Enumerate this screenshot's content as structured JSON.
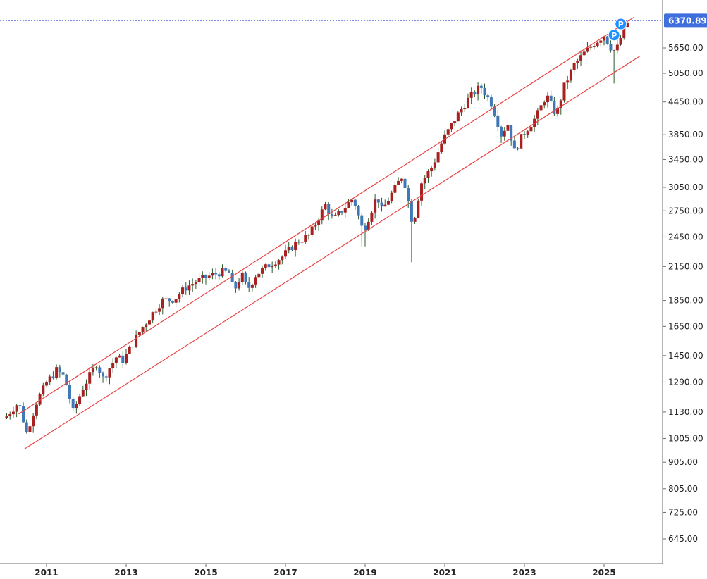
{
  "chart_data": {
    "type": "candlestick",
    "timeframe": "monthly",
    "scale": "log",
    "grid": false,
    "colors": {
      "up": "#a82020",
      "down": "#3f78b6",
      "wick": "#2a5a2a",
      "channel": "#e84545",
      "axis": "#6b6b6b",
      "price_tag": "#3f6fdc",
      "marker": "#1e90ff"
    },
    "y_ticks": [
      645,
      725,
      805,
      905,
      1005,
      1130,
      1290,
      1450,
      1650,
      1850,
      2150,
      2450,
      2750,
      3050,
      3450,
      3850,
      4450,
      5050,
      5650
    ],
    "y_tick_labels": [
      "645.00",
      "725.00",
      "805.00",
      "905.00",
      "1005.00",
      "1130.00",
      "1290.00",
      "1450.00",
      "1650.00",
      "1850.00",
      "2150.00",
      "2450.00",
      "2750.00",
      "3050.00",
      "3450.00",
      "3850.00",
      "4450.00",
      "5050.00",
      "5650.00"
    ],
    "x_ticks": [
      2011,
      2013,
      2015,
      2017,
      2019,
      2021,
      2023,
      2025
    ],
    "x_tick_labels": [
      "2011",
      "2013",
      "2015",
      "2017",
      "2019",
      "2021",
      "2023",
      "2025"
    ],
    "last_price": 6370.89,
    "last_price_label": "6370.89",
    "markers": [
      {
        "date": 2025.25,
        "price": 5980,
        "label": "P"
      },
      {
        "date": 2025.42,
        "price": 6280,
        "label": "P"
      }
    ],
    "channel": {
      "upper": [
        [
          2010.3,
          1120
        ],
        [
          2025.75,
          6470
        ]
      ],
      "lower": [
        [
          2010.45,
          960
        ],
        [
          2025.9,
          5450
        ]
      ]
    },
    "monthly_close_anchors": [
      [
        2010.0,
        1110
      ],
      [
        2010.3,
        1180
      ],
      [
        2010.5,
        1030
      ],
      [
        2010.75,
        1180
      ],
      [
        2011.0,
        1285
      ],
      [
        2011.25,
        1360
      ],
      [
        2011.45,
        1320
      ],
      [
        2011.67,
        1130
      ],
      [
        2011.9,
        1250
      ],
      [
        2012.25,
        1400
      ],
      [
        2012.42,
        1310
      ],
      [
        2012.75,
        1440
      ],
      [
        2012.92,
        1420
      ],
      [
        2013.4,
        1640
      ],
      [
        2013.9,
        1850
      ],
      [
        2014.2,
        1860
      ],
      [
        2014.5,
        1960
      ],
      [
        2014.75,
        2010
      ],
      [
        2015.0,
        2050
      ],
      [
        2015.4,
        2100
      ],
      [
        2015.6,
        2090
      ],
      [
        2015.7,
        1920
      ],
      [
        2015.9,
        2080
      ],
      [
        2016.05,
        1940
      ],
      [
        2016.25,
        2070
      ],
      [
        2016.6,
        2170
      ],
      [
        2016.9,
        2240
      ],
      [
        2017.3,
        2400
      ],
      [
        2017.6,
        2470
      ],
      [
        2018.0,
        2820
      ],
      [
        2018.2,
        2640
      ],
      [
        2018.7,
        2910
      ],
      [
        2018.95,
        2510
      ],
      [
        2019.3,
        2940
      ],
      [
        2019.42,
        2750
      ],
      [
        2019.75,
        3040
      ],
      [
        2019.95,
        3230
      ],
      [
        2020.2,
        2580
      ],
      [
        2020.4,
        3100
      ],
      [
        2020.7,
        3360
      ],
      [
        2020.95,
        3760
      ],
      [
        2021.3,
        4180
      ],
      [
        2021.6,
        4520
      ],
      [
        2021.9,
        4770
      ],
      [
        2022.2,
        4380
      ],
      [
        2022.45,
        3780
      ],
      [
        2022.55,
        4130
      ],
      [
        2022.75,
        3580
      ],
      [
        2022.95,
        3840
      ],
      [
        2023.3,
        4170
      ],
      [
        2023.55,
        4590
      ],
      [
        2023.8,
        4190
      ],
      [
        2024.0,
        4770
      ],
      [
        2024.25,
        5240
      ],
      [
        2024.5,
        5520
      ],
      [
        2024.75,
        5760
      ],
      [
        2025.0,
        5980
      ],
      [
        2025.2,
        5610
      ],
      [
        2025.3,
        5570
      ],
      [
        2025.42,
        5910
      ],
      [
        2025.6,
        6370
      ]
    ]
  }
}
